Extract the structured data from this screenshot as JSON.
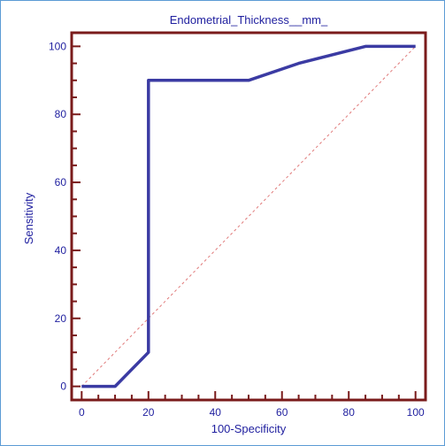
{
  "chart_data": {
    "type": "line",
    "title": "Endometrial_Thickness__mm_",
    "xlabel": "100-Specificity",
    "ylabel": "Sensitivity",
    "xlim": [
      -3,
      103
    ],
    "ylim": [
      -4,
      104
    ],
    "x_ticks": [
      0,
      20,
      40,
      60,
      80,
      100
    ],
    "y_ticks": [
      0,
      20,
      40,
      60,
      80,
      100
    ],
    "grid": false,
    "series": [
      {
        "style": "solid",
        "color": "#3b3ba3",
        "x": [
          0,
          10,
          20,
          20,
          50,
          65,
          85,
          100
        ],
        "y": [
          0,
          0,
          10,
          90,
          90,
          95,
          100,
          100
        ]
      },
      {
        "style": "dashed",
        "color": "#e07a7a",
        "x": [
          0,
          100
        ],
        "y": [
          0,
          100
        ]
      }
    ],
    "colors": {
      "axes_border": "#7a1b1b",
      "tick_labels": "#1f1f9f"
    }
  }
}
